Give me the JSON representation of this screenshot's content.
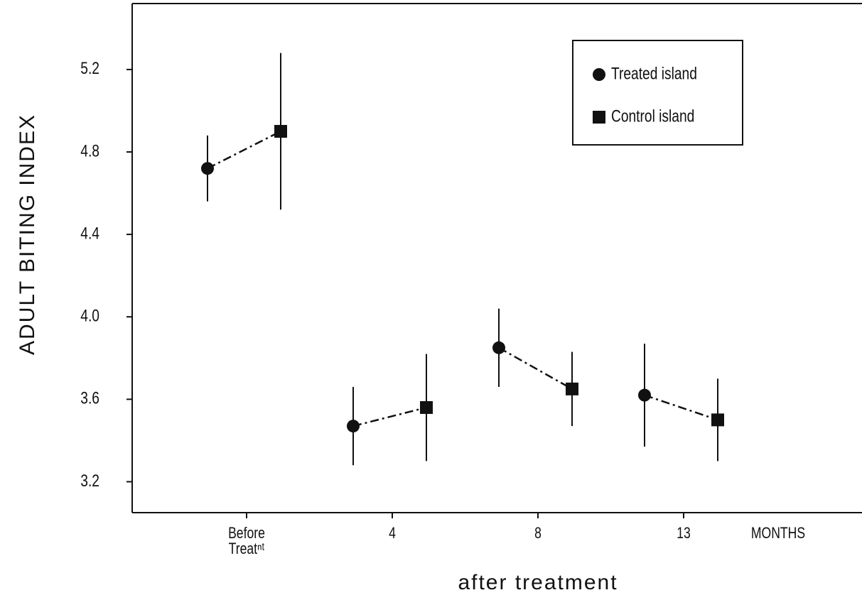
{
  "chart_data": {
    "type": "errorbar",
    "y_label": "ADULT BITING INDEX",
    "x_label": "after treatment",
    "x_unit_label": "MONTHS",
    "categories": [
      "Before Treatⁿᵗ",
      "4",
      "8",
      "13"
    ],
    "series": [
      {
        "name": "Treated island",
        "marker": "circle",
        "color": "#111111",
        "values": [
          4.72,
          3.47,
          3.85,
          3.62
        ],
        "errors": [
          0.16,
          0.19,
          0.19,
          0.25
        ]
      },
      {
        "name": "Control island",
        "marker": "square",
        "color": "#111111",
        "values": [
          4.9,
          3.56,
          3.65,
          3.5
        ],
        "errors": [
          0.38,
          0.26,
          0.18,
          0.2
        ]
      }
    ],
    "ylim": [
      3.05,
      5.52
    ],
    "yticks": [
      3.2,
      3.6,
      {
        "value": 4,
        "label": "4.0"
      },
      4.4,
      4.8,
      5.2
    ],
    "grid": false
  }
}
